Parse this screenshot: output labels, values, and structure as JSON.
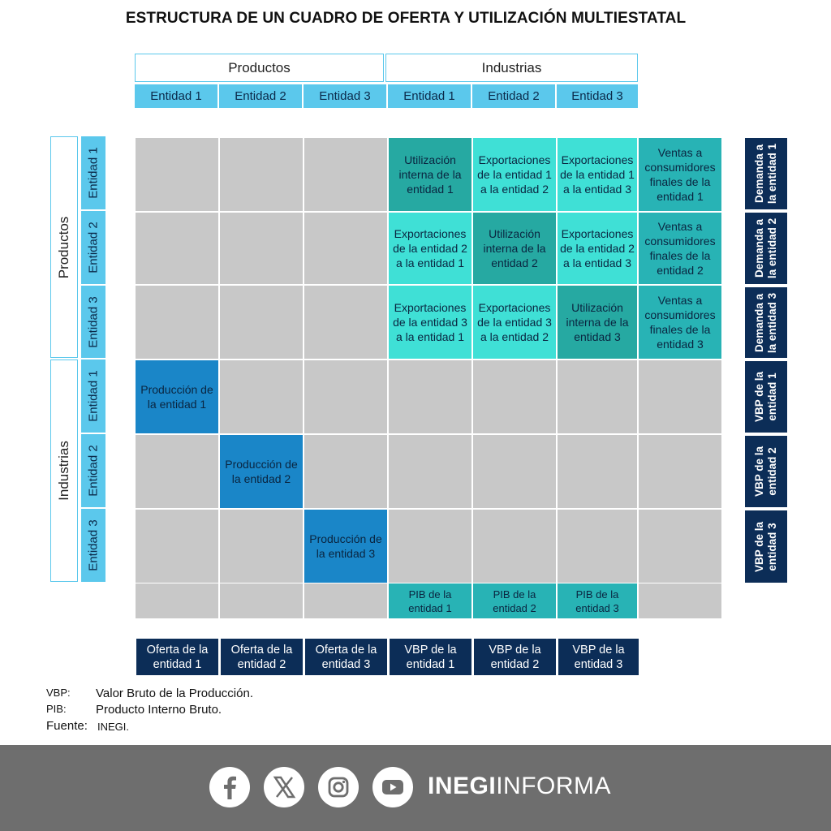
{
  "title": "ESTRUCTURA DE UN CUADRO DE OFERTA Y UTILIZACIÓN MULTIESTATAL",
  "top_groups": [
    "Productos",
    "Industrias"
  ],
  "side_groups": [
    "Productos",
    "Industrias"
  ],
  "entity_labels": [
    "Entidad 1",
    "Entidad 2",
    "Entidad 3",
    "Entidad 1",
    "Entidad 2",
    "Entidad 3"
  ],
  "matrix": {
    "row0": [
      "",
      "",
      "",
      "Utilización interna de la entidad 1",
      "Exportaciones de la entidad 1 a la entidad 2",
      "Exportaciones de la entidad 1 a la entidad 3",
      "Ventas a consumidores finales de la entidad 1"
    ],
    "row1": [
      "",
      "",
      "",
      "Exportaciones de la entidad 2 a la entidad 1",
      "Utilización interna de la entidad 2",
      "Exportaciones de la entidad 2 a la entidad 3",
      "Ventas a consumidores finales de la entidad 2"
    ],
    "row2": [
      "",
      "",
      "",
      "Exportaciones de la entidad 3 a la entidad 1",
      "Exportaciones de la entidad 3 a la entidad 2",
      "Utilización interna de la entidad 3",
      "Ventas a consumidores finales de la entidad 3"
    ],
    "row3": [
      "Producción de la entidad 1",
      "",
      "",
      "",
      "",
      "",
      ""
    ],
    "row4": [
      "",
      "Producción de la entidad 2",
      "",
      "",
      "",
      "",
      ""
    ],
    "row5": [
      "",
      "",
      "Producción de la entidad 3",
      "",
      "",
      "",
      ""
    ],
    "row6": [
      "",
      "",
      "",
      "PIB de la entidad 1",
      "PIB de la entidad 2",
      "PIB de la entidad 3",
      ""
    ]
  },
  "right_labels": [
    "Demanda a la entidad 1",
    "Demanda a la entidad 2",
    "Demanda a la entidad 3",
    "VBP de la entidad 1",
    "VBP de la entidad 2",
    "VBP de la entidad 3"
  ],
  "bottom_labels": [
    "Oferta de la entidad 1",
    "Oferta de la entidad 2",
    "Oferta de la entidad 3",
    "VBP de la entidad 1",
    "VBP de la entidad 2",
    "VBP de la entidad 3"
  ],
  "notes": {
    "vbp_abbr": "VBP:",
    "vbp_def": "Valor Bruto de la Producción.",
    "pib_abbr": "PIB:",
    "pib_def": "Producto Interno Bruto.",
    "source_label": "Fuente:",
    "source_value": "INEGI."
  },
  "footer": {
    "icons": [
      "facebook-icon",
      "x-icon",
      "instagram-icon",
      "youtube-icon"
    ],
    "brand_bold": "INEGI",
    "brand_light": "INFORMA"
  },
  "colors": {
    "light_blue": "#5bc8ec",
    "teal_dark": "#26a9a2",
    "teal_light": "#3fe0d6",
    "blue": "#1a86c8",
    "navy": "#0c2d57",
    "gray": "#c8c8c8",
    "footer_gray": "#6e6e6e"
  }
}
